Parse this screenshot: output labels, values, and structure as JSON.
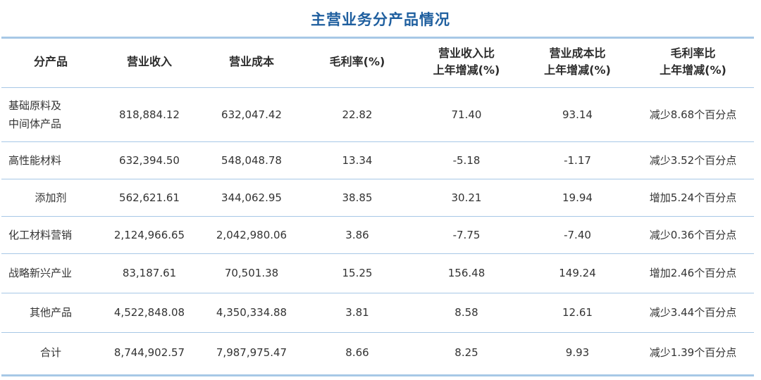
{
  "title": "主营业务分产品情况",
  "headers": [
    {
      "line1": "分产品",
      "line2": ""
    },
    {
      "line1": "营业收入",
      "line2": ""
    },
    {
      "line1": "营业成本",
      "line2": ""
    },
    {
      "line1": "毛利率(%)",
      "line2": ""
    },
    {
      "line1": "营业收入比",
      "line2": "上年增减(%)"
    },
    {
      "line1": "营业成本比",
      "line2": "上年增减(%)"
    },
    {
      "line1": "毛利率比",
      "line2": "上年增减(%)"
    }
  ],
  "rows": [
    {
      "name_line1": "基础原料及",
      "name_line2": "中间体产品",
      "revenue": "818,884.12",
      "cost": "632,047.42",
      "margin": "22.82",
      "rev_change": "71.40",
      "cost_change": "93.14",
      "margin_change": "减少8.68个百分点"
    },
    {
      "name_line1": "高性能材料",
      "name_line2": "",
      "revenue": "632,394.50",
      "cost": "548,048.78",
      "margin": "13.34",
      "rev_change": "-5.18",
      "cost_change": "-1.17",
      "margin_change": "减少3.52个百分点"
    },
    {
      "name_line1": "添加剂",
      "name_line2": "",
      "revenue": "562,621.61",
      "cost": "344,062.95",
      "margin": "38.85",
      "rev_change": "30.21",
      "cost_change": "19.94",
      "margin_change": "增加5.24个百分点"
    },
    {
      "name_line1": "化工材料营销",
      "name_line2": "",
      "revenue": "2,124,966.65",
      "cost": "2,042,980.06",
      "margin": "3.86",
      "rev_change": "-7.75",
      "cost_change": "-7.40",
      "margin_change": "减少0.36个百分点"
    },
    {
      "name_line1": "战略新兴产业",
      "name_line2": "",
      "revenue": "83,187.61",
      "cost": "70,501.38",
      "margin": "15.25",
      "rev_change": "156.48",
      "cost_change": "149.24",
      "margin_change": "增加2.46个百分点"
    },
    {
      "name_line1": "其他产品",
      "name_line2": "",
      "revenue": "4,522,848.08",
      "cost": "4,350,334.88",
      "margin": "3.81",
      "rev_change": "8.58",
      "cost_change": "12.61",
      "margin_change": "减少3.44个百分点"
    },
    {
      "name_line1": "合计",
      "name_line2": "",
      "revenue": "8,744,902.57",
      "cost": "7,987,975.47",
      "margin": "8.66",
      "rev_change": "8.25",
      "cost_change": "9.93",
      "margin_change": "减少1.39个百分点"
    }
  ],
  "colors": {
    "title": "#1f5f9f",
    "rule": "#a7c8e6"
  }
}
